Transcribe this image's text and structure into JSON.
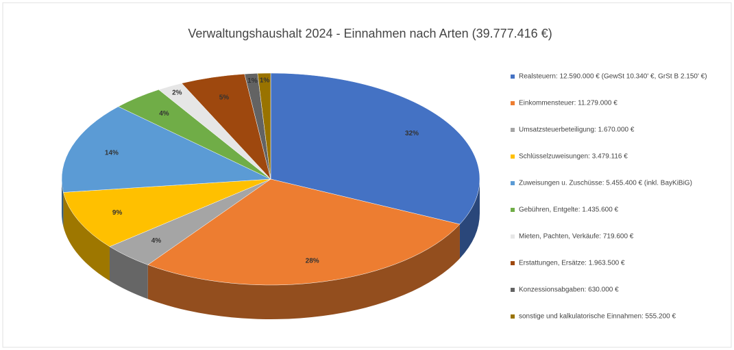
{
  "chart_data": {
    "type": "pie",
    "title": "Verwaltungshaushalt 2024 -  Einnahmen nach Arten (39.777.416 €)",
    "categories": [
      "Realsteuern: 12.590.000 € (GewSt 10.340' €, GrSt B 2.150' €)",
      "Einkommensteuer: 11.279.000 €",
      "Umsatzsteuerbeteiligung: 1.670.000 €",
      "Schlüsselzuweisungen: 3.479.116 €",
      "Zuweisungen u. Zuschüsse: 5.455.400 € (inkl. BayKiBiG)",
      "Gebühren, Entgelte: 1.435.600 €",
      "Mieten, Pachten, Verkäufe: 719.600 €",
      "Erstattungen, Ersätze: 1.963.500 €",
      "Konzessionsabgaben: 630.000 €",
      "sonstige und kalkulatorische Einnahmen: 555.200 €"
    ],
    "values": [
      32,
      28,
      4,
      9,
      14,
      4,
      2,
      5,
      1,
      1
    ],
    "value_labels": [
      "32%",
      "28%",
      "4%",
      "9%",
      "14%",
      "4%",
      "2%",
      "5%",
      "1%",
      "1%"
    ],
    "colors": [
      "#4472c4",
      "#ed7d31",
      "#a5a5a5",
      "#ffc000",
      "#5b9bd5",
      "#70ad47",
      "#e6e6e6",
      "#9e480e",
      "#636363",
      "#997300"
    ],
    "legend": "right"
  }
}
